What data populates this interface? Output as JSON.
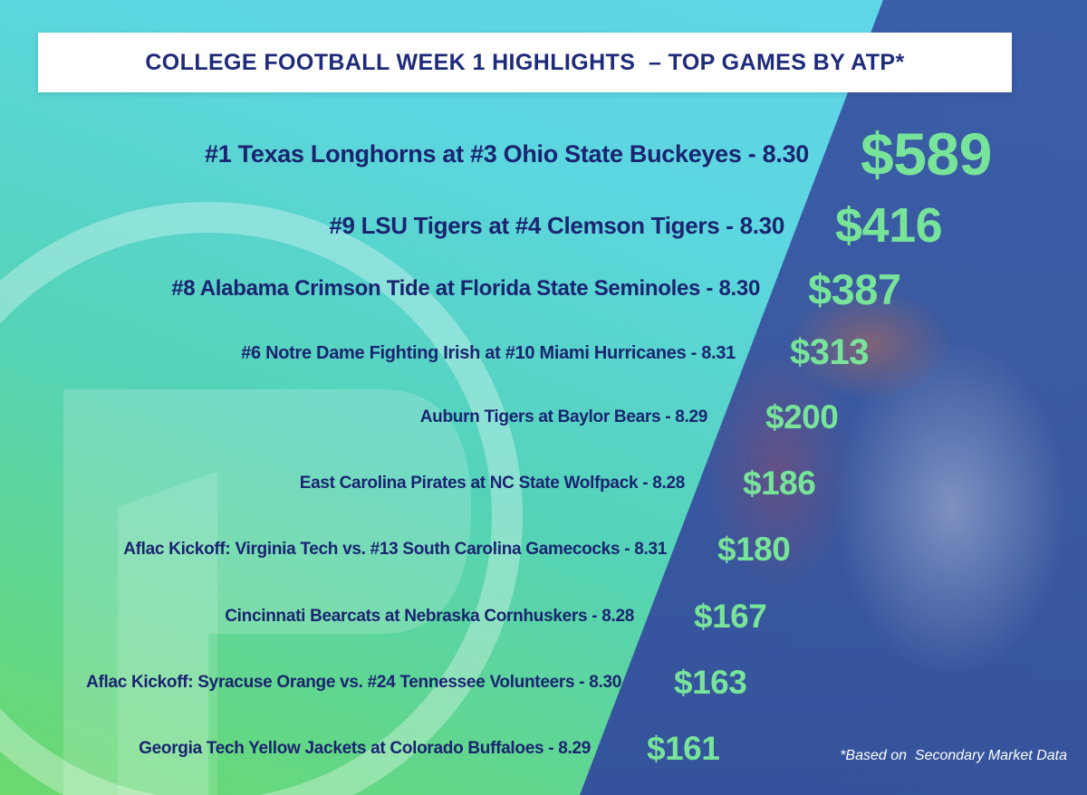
{
  "header": {
    "title": "COLLEGE FOOTBALL WEEK 1 HIGHLIGHTS  – TOP GAMES BY ATP*"
  },
  "games": [
    {
      "label": "#1 Texas Longhorns at #3 Ohio State Buckeyes - 8.30",
      "price": "$589"
    },
    {
      "label": "#9 LSU Tigers at #4 Clemson Tigers - 8.30",
      "price": "$416"
    },
    {
      "label": "#8 Alabama Crimson Tide at Florida State Seminoles - 8.30",
      "price": "$387"
    },
    {
      "label": "#6 Notre Dame Fighting Irish at #10 Miami Hurricanes - 8.31",
      "price": "$313"
    },
    {
      "label": "Auburn Tigers at Baylor Bears - 8.29",
      "price": "$200"
    },
    {
      "label": "East Carolina Pirates at NC State Wolfpack - 8.28",
      "price": "$186"
    },
    {
      "label": "Aflac Kickoff: Virginia Tech vs. #13 South Carolina Gamecocks - 8.31",
      "price": "$180"
    },
    {
      "label": "Cincinnati Bearcats at Nebraska Cornhuskers - 8.28",
      "price": "$167"
    },
    {
      "label": "Aflac Kickoff: Syracuse Orange vs. #24 Tennessee Volunteers -  8.30",
      "price": "$163"
    },
    {
      "label": "Georgia Tech Yellow Jackets at Colorado Buffaloes - 8.29",
      "price": "$161"
    }
  ],
  "footnote": "*Based on  Secondary Market Data",
  "colors": {
    "title": "#1d2b7a",
    "game_text": "#1a2470",
    "price": "#78e49a",
    "photo": "#3a5aa0"
  }
}
